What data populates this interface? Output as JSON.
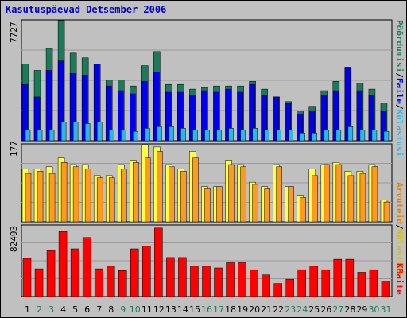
{
  "title": "Kasutuspäevad Detsember 2006",
  "colors": {
    "frame_bg": "#c0c0c0",
    "plot_bg": "#c0c0c0",
    "visits": "#1a7a5a",
    "pages": "#0000ee",
    "files": "#0040ff",
    "hits": "#2ab8e8",
    "sites": "#ffff44",
    "sites_dark": "#e0a000",
    "kbytes": "#ff0000",
    "weekend_label": "#1a7a5a",
    "weekday_label": "#000000"
  },
  "legend_top": {
    "visits": "Pöördumisi",
    "files": "Faile",
    "hits": "Külastusi"
  },
  "legend_mid": {
    "hosts": "Arvuteid",
    "visits": "Külastusi"
  },
  "legend_bottom": "KBaite",
  "chart_data": [
    {
      "type": "bar",
      "title": "",
      "categories": [
        "1",
        "2",
        "3",
        "4",
        "5",
        "6",
        "7",
        "8",
        "9",
        "10",
        "11",
        "12",
        "13",
        "14",
        "15",
        "16",
        "17",
        "18",
        "19",
        "20",
        "21",
        "22",
        "23",
        "24",
        "25",
        "26",
        "27",
        "28",
        "29",
        "30",
        "31"
      ],
      "weekend": [
        false,
        true,
        true,
        false,
        false,
        false,
        false,
        false,
        true,
        true,
        false,
        false,
        false,
        false,
        false,
        true,
        true,
        false,
        false,
        false,
        false,
        false,
        true,
        true,
        false,
        false,
        true,
        false,
        false,
        true,
        true
      ],
      "ymax_label": "7727",
      "ylim": [
        0,
        7727
      ],
      "series": [
        {
          "name": "Pöördumisi",
          "values": [
            4900,
            4500,
            5900,
            7700,
            5600,
            5300,
            4900,
            3900,
            3900,
            3500,
            4800,
            5700,
            3600,
            3600,
            3300,
            3400,
            3500,
            3500,
            3500,
            3800,
            3300,
            2800,
            2500,
            1900,
            2200,
            3200,
            3800,
            4700,
            3700,
            3300,
            2400
          ]
        },
        {
          "name": "Faile",
          "values": [
            3600,
            2800,
            4500,
            5100,
            4300,
            4200,
            4900,
            3500,
            3200,
            3000,
            3800,
            4400,
            3100,
            3100,
            2900,
            3200,
            3100,
            3300,
            3100,
            3600,
            2900,
            2800,
            2400,
            1700,
            1900,
            2900,
            3200,
            4700,
            3200,
            2900,
            1900
          ]
        },
        {
          "name": "Külastusi",
          "values": [
            700,
            700,
            700,
            1200,
            1200,
            1100,
            1200,
            700,
            700,
            600,
            800,
            900,
            900,
            800,
            700,
            700,
            700,
            800,
            700,
            800,
            700,
            700,
            700,
            500,
            500,
            700,
            700,
            900,
            700,
            700,
            600
          ]
        }
      ]
    },
    {
      "type": "bar",
      "title": "",
      "categories": [
        "1",
        "2",
        "3",
        "4",
        "5",
        "6",
        "7",
        "8",
        "9",
        "10",
        "11",
        "12",
        "13",
        "14",
        "15",
        "16",
        "17",
        "18",
        "19",
        "20",
        "21",
        "22",
        "23",
        "24",
        "25",
        "26",
        "27",
        "28",
        "29",
        "30",
        "31"
      ],
      "ymax_label": "177",
      "ylim": [
        0,
        177
      ],
      "series": [
        {
          "name": "Arvuteid",
          "values": [
            120,
            120,
            125,
            145,
            130,
            130,
            105,
            105,
            130,
            140,
            175,
            170,
            130,
            120,
            160,
            80,
            80,
            140,
            130,
            90,
            80,
            130,
            80,
            60,
            120,
            130,
            135,
            115,
            115,
            130,
            50
          ]
        },
        {
          "name": "Külastusi",
          "values": [
            110,
            115,
            110,
            135,
            125,
            120,
            100,
            100,
            120,
            135,
            145,
            160,
            125,
            115,
            145,
            75,
            80,
            130,
            125,
            85,
            75,
            125,
            80,
            55,
            105,
            130,
            130,
            105,
            110,
            125,
            45
          ]
        }
      ]
    },
    {
      "type": "bar",
      "title": "",
      "categories": [
        "1",
        "2",
        "3",
        "4",
        "5",
        "6",
        "7",
        "8",
        "9",
        "10",
        "11",
        "12",
        "13",
        "14",
        "15",
        "16",
        "17",
        "18",
        "19",
        "20",
        "21",
        "22",
        "23",
        "24",
        "25",
        "26",
        "27",
        "28",
        "29",
        "30",
        "31"
      ],
      "ymax_label": "82493",
      "ylim": [
        0,
        82493
      ],
      "series": [
        {
          "name": "KBaite",
          "values": [
            44000,
            32000,
            53000,
            75000,
            55000,
            68000,
            32000,
            35000,
            30000,
            55000,
            58000,
            79000,
            45000,
            45000,
            35000,
            35000,
            33000,
            39000,
            39000,
            31000,
            25000,
            15000,
            20000,
            31000,
            35000,
            31000,
            43000,
            43000,
            28000,
            31000,
            18000
          ]
        }
      ]
    }
  ]
}
